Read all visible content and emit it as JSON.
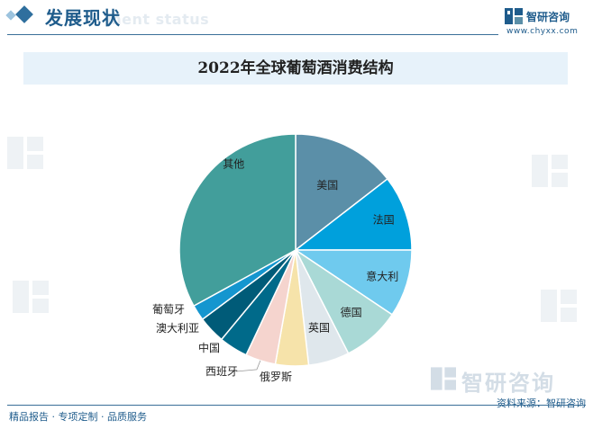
{
  "header": {
    "section_title": "发展现状",
    "section_watermark": "ment status",
    "logo_name": "智研咨询",
    "logo_url": "www.chyxx.com"
  },
  "footer": {
    "left_text": "精品报告 · 专项定制 · 品质服务",
    "source_text": "资料来源：智研咨询"
  },
  "watermark": {
    "brand": "智研咨询"
  },
  "colors": {
    "accent": "#1f5c8c"
  },
  "chart_data": {
    "type": "pie",
    "title": "2022年全球葡萄酒消费结构",
    "slices": [
      {
        "name": "美国",
        "value": 14.5,
        "color": "#5b8fa8"
      },
      {
        "name": "法国",
        "value": 10.5,
        "color": "#00a0dc"
      },
      {
        "name": "意大利",
        "value": 9.4,
        "color": "#6fcaee"
      },
      {
        "name": "德国",
        "value": 8.1,
        "color": "#a9d9d6"
      },
      {
        "name": "英国",
        "value": 5.7,
        "color": "#dfe7ec"
      },
      {
        "name": "俄罗斯",
        "value": 4.6,
        "color": "#f6e3aa"
      },
      {
        "name": "西班牙",
        "value": 4.2,
        "color": "#f5d4ce"
      },
      {
        "name": "中国",
        "value": 4.0,
        "color": "#006a8a"
      },
      {
        "name": "澳大利亚",
        "value": 3.8,
        "color": "#005b78"
      },
      {
        "name": "葡萄牙",
        "value": 2.2,
        "color": "#1596cf"
      },
      {
        "name": "其他",
        "value": 33.0,
        "color": "#429e9b"
      }
    ]
  }
}
